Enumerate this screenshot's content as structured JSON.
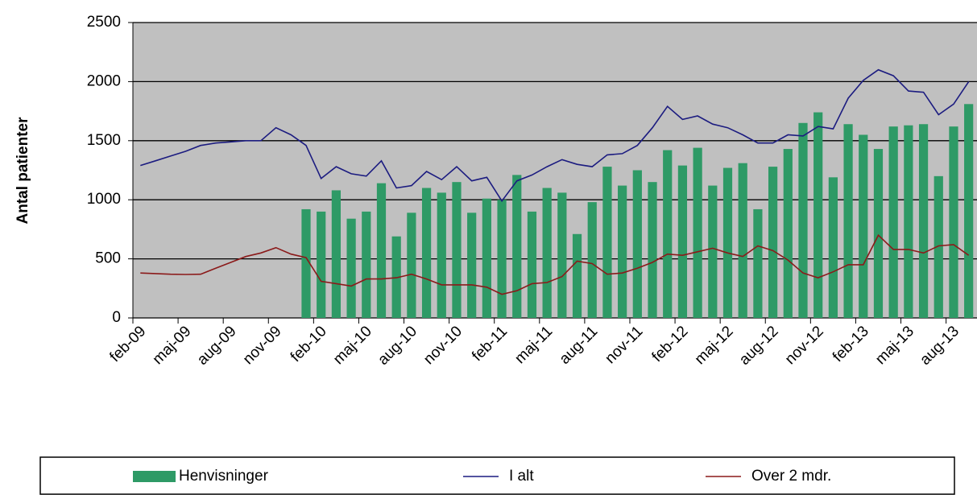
{
  "chart_data": {
    "type": "bar",
    "y_label": "Antal patienter",
    "categories": [
      "feb-09",
      null,
      null,
      "maj-09",
      null,
      null,
      "aug-09",
      null,
      null,
      "nov-09",
      null,
      null,
      "feb-10",
      null,
      null,
      "maj-10",
      null,
      null,
      "aug-10",
      null,
      null,
      "nov-10",
      null,
      null,
      "feb-11",
      null,
      null,
      "maj-11",
      null,
      null,
      "aug-11",
      null,
      null,
      "nov-11",
      null,
      null,
      "feb-12",
      null,
      null,
      "maj-12",
      null,
      null,
      "aug-12",
      null,
      null,
      "nov-12",
      null,
      null,
      "feb-13",
      null,
      null,
      "maj-13",
      null,
      null,
      "aug-13",
      null
    ],
    "ylim": [
      0,
      2500
    ],
    "yticks": [
      0,
      500,
      1000,
      1500,
      2000,
      2500
    ],
    "grid": true,
    "legend": "bottom",
    "series": [
      {
        "name": "Henvisninger",
        "type": "bar",
        "color": "#2e9a66",
        "values": [
          null,
          null,
          null,
          null,
          null,
          null,
          null,
          null,
          null,
          null,
          null,
          920,
          900,
          1080,
          840,
          900,
          1140,
          690,
          890,
          1100,
          1060,
          1150,
          890,
          1010,
          1000,
          1210,
          900,
          1100,
          1060,
          710,
          980,
          1280,
          1120,
          1250,
          1150,
          1420,
          1290,
          1440,
          1120,
          1270,
          1310,
          920,
          1280,
          1430,
          1650,
          1740,
          1190,
          1640,
          1550,
          1430,
          1620,
          1630,
          1640,
          1200,
          1620,
          1810
        ]
      },
      {
        "name": "I alt",
        "type": "line",
        "color": "#1c1c80",
        "values": [
          1290,
          1330,
          1370,
          1410,
          1460,
          1480,
          1490,
          1500,
          1500,
          1610,
          1550,
          1460,
          1180,
          1280,
          1220,
          1200,
          1330,
          1100,
          1120,
          1240,
          1170,
          1280,
          1160,
          1190,
          990,
          1160,
          1210,
          1280,
          1340,
          1300,
          1280,
          1380,
          1390,
          1460,
          1610,
          1790,
          1680,
          1710,
          1640,
          1610,
          1550,
          1480,
          1480,
          1550,
          1540,
          1620,
          1600,
          1860,
          2010,
          2100,
          2050,
          1920,
          1910,
          1720,
          1810,
          2000
        ]
      },
      {
        "name": "Over 2 mdr.",
        "type": "line",
        "color": "#8b1a1a",
        "values": [
          380,
          375,
          370,
          368,
          370,
          420,
          470,
          520,
          550,
          595,
          540,
          510,
          310,
          290,
          270,
          330,
          330,
          340,
          370,
          330,
          280,
          280,
          280,
          260,
          200,
          230,
          290,
          300,
          350,
          480,
          460,
          370,
          380,
          420,
          470,
          540,
          530,
          560,
          590,
          550,
          520,
          610,
          570,
          490,
          380,
          340,
          390,
          450,
          450,
          700,
          580,
          580,
          550,
          610,
          620,
          530
        ]
      }
    ]
  }
}
